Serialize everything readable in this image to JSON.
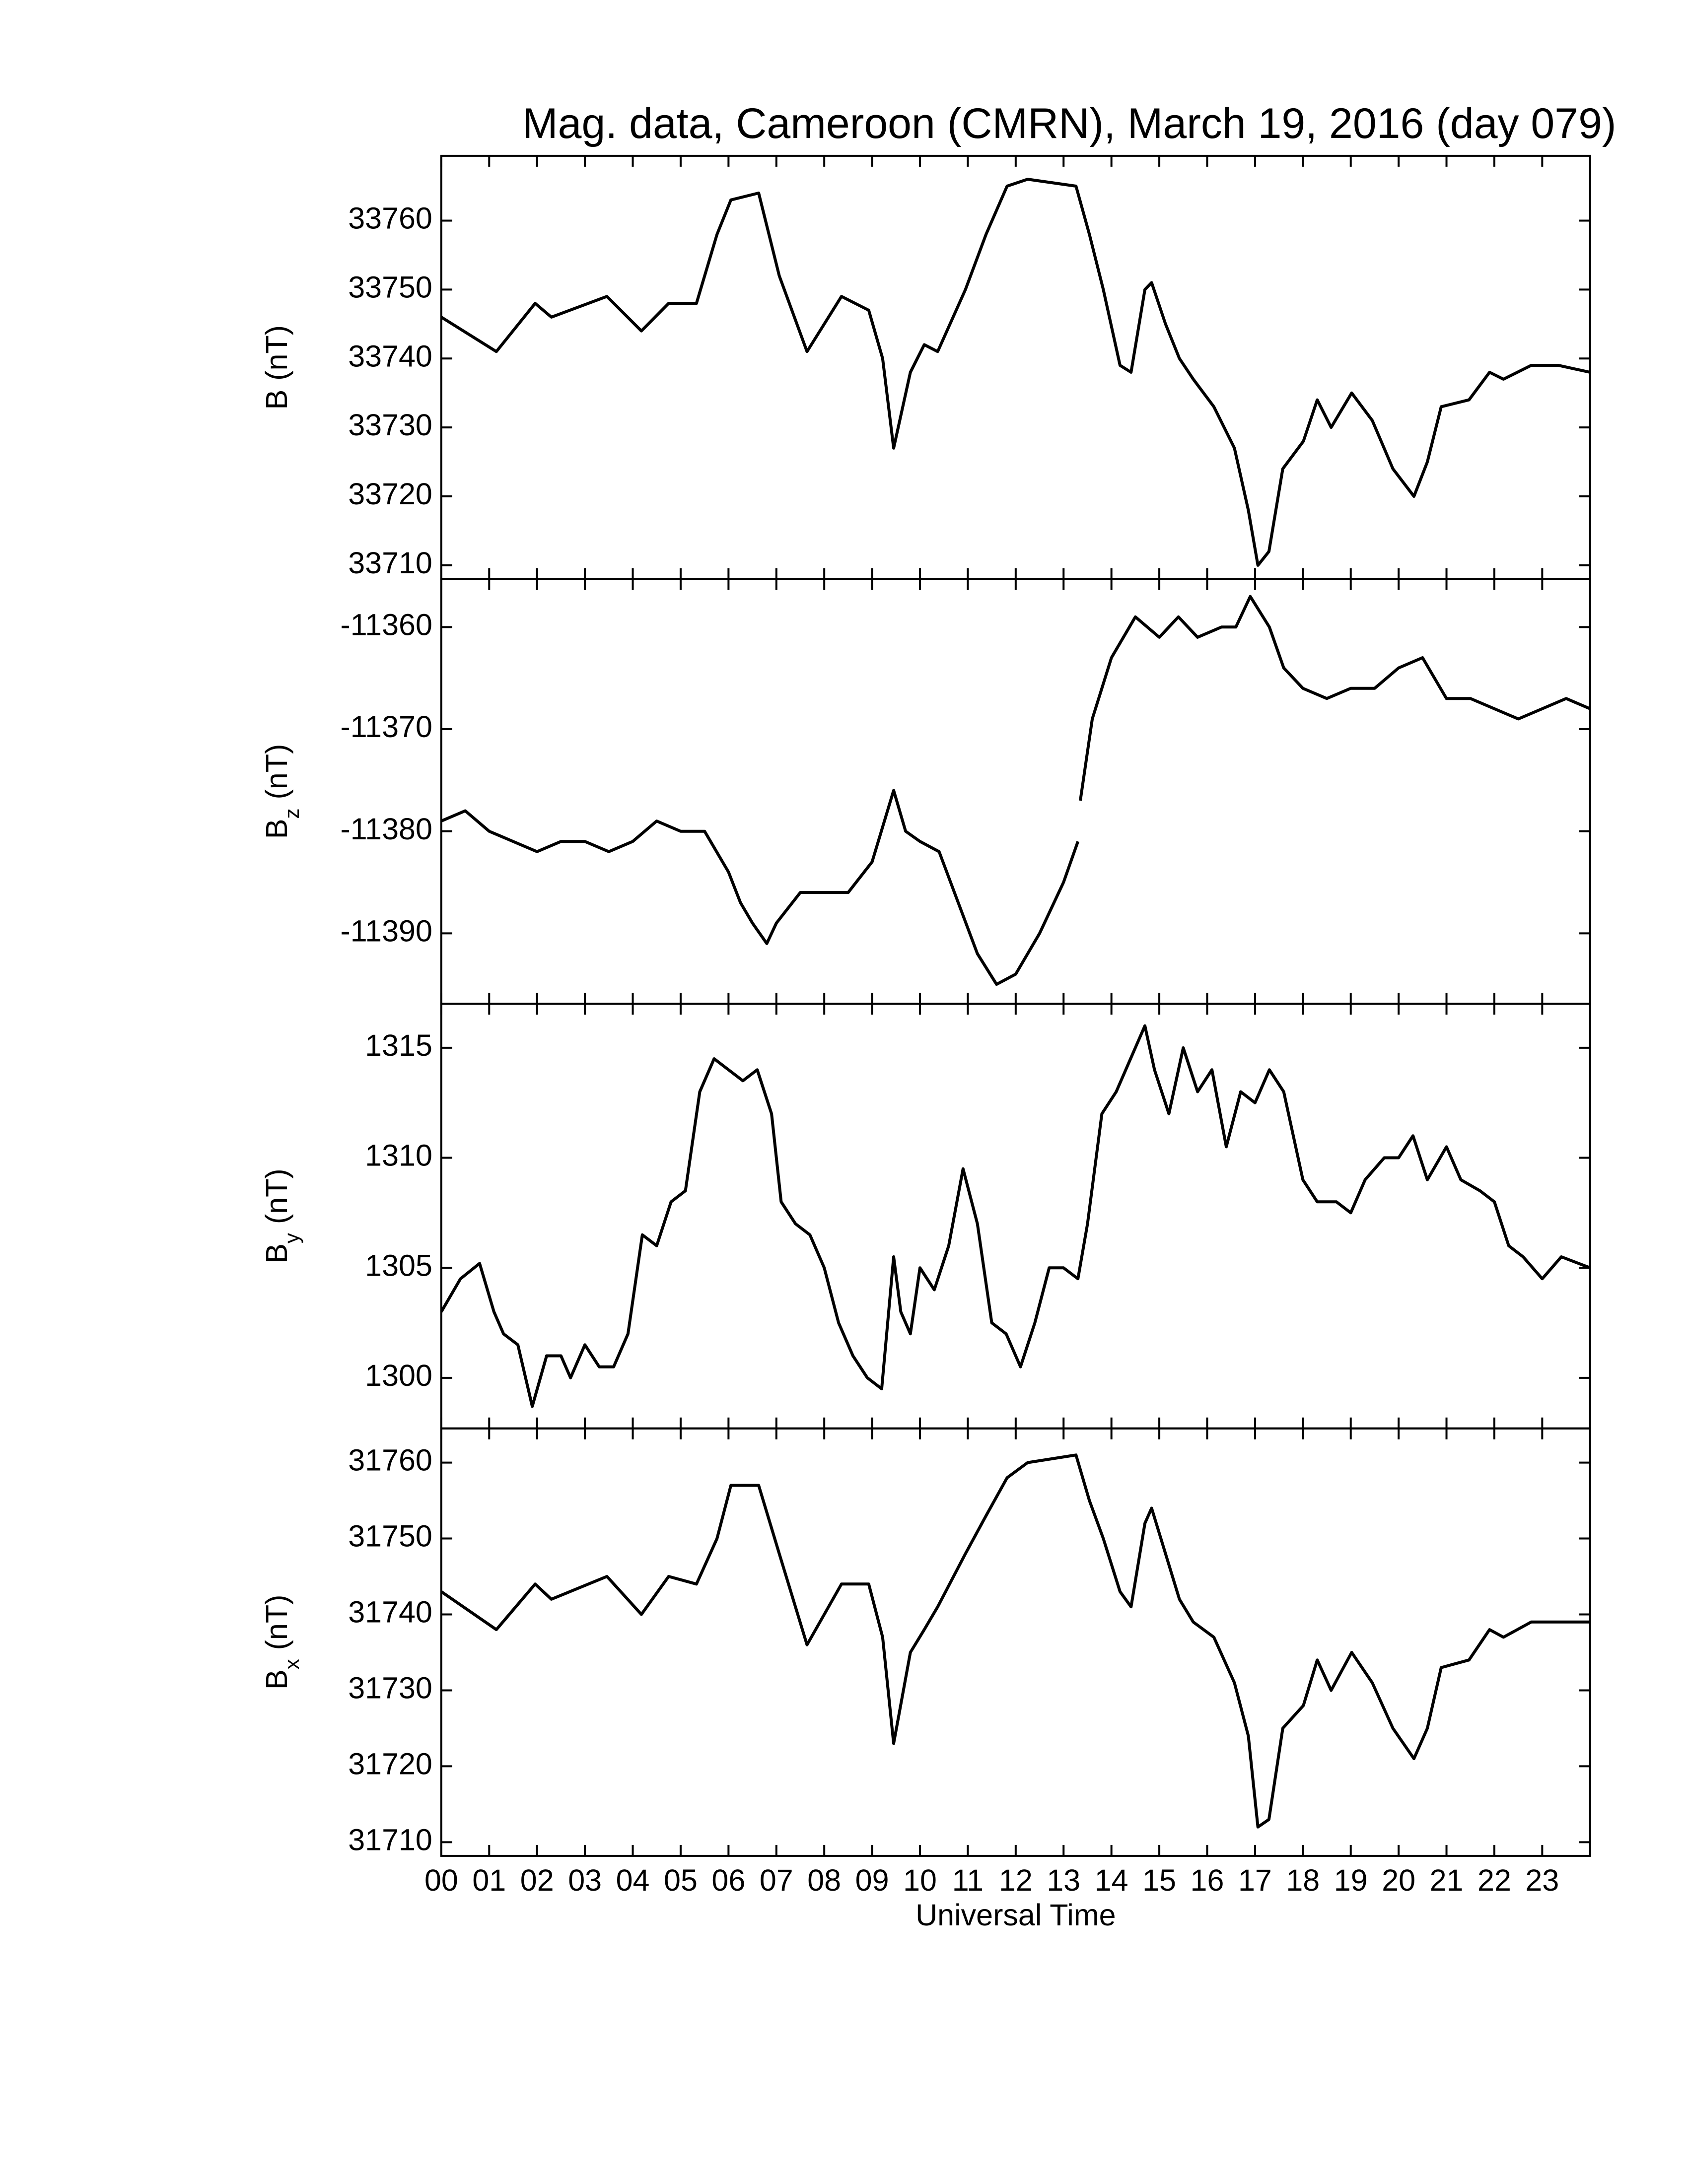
{
  "chart_data": [
    {
      "type": "line",
      "title": "Mag. data, Cameroon (CMRN), March 19, 2016 (day 079)",
      "ylabel": "B",
      "ylabel_unit": "(nT)",
      "color": "#000000",
      "xlim": [
        0,
        24
      ],
      "ylim": [
        33708,
        33769.4
      ],
      "yticks": [
        33710,
        33720,
        33730,
        33740,
        33750,
        33760
      ],
      "x": [
        0,
        1.15,
        1.96,
        2.3,
        3.46,
        4.18,
        4.75,
        5.33,
        5.76,
        6.05,
        6.63,
        7.06,
        7.64,
        8.36,
        8.93,
        9.22,
        9.45,
        9.8,
        10.09,
        10.37,
        10.95,
        11.38,
        11.82,
        12.25,
        13.26,
        13.54,
        13.83,
        14.18,
        14.41,
        14.7,
        14.84,
        15.13,
        15.42,
        15.71,
        16.14,
        16.57,
        16.86,
        17.06,
        17.29,
        17.58,
        18.01,
        18.3,
        18.59,
        19.02,
        19.45,
        19.88,
        20.32,
        20.6,
        20.89,
        21.47,
        21.9,
        22.19,
        22.77,
        23.34,
        24
      ],
      "values": [
        33746,
        33741,
        33748,
        33746,
        33749,
        33744,
        33748,
        33748,
        33758,
        33763,
        33764,
        33752,
        33741,
        33749,
        33747,
        33740,
        33727,
        33738,
        33742,
        33741,
        33750,
        33758,
        33765,
        33766,
        33765,
        33758,
        33750,
        33739,
        33738,
        33750,
        33751,
        33745,
        33740,
        33737,
        33733,
        33727,
        33718,
        33710,
        33712,
        33724,
        33728,
        33734,
        33730,
        33735,
        33731,
        33724,
        33720,
        33725,
        33733,
        33734,
        33738,
        33737,
        33739,
        33739,
        33738
      ]
    },
    {
      "type": "line",
      "ylabel": "B",
      "ylabel_sub": "z",
      "ylabel_unit": "(nT)",
      "color": "#000000",
      "xlim": [
        0,
        24
      ],
      "ylim": [
        -11396.9,
        -11355.3
      ],
      "yticks": [
        -11390,
        -11380,
        -11370,
        -11360
      ],
      "x": [
        0,
        0.5,
        1,
        1.5,
        2,
        2.5,
        3,
        3.5,
        4,
        4.5,
        5,
        5.5,
        6,
        6.25,
        6.5,
        6.8,
        7,
        7.5,
        8,
        8.5,
        9,
        9.45,
        9.7,
        10,
        10.4,
        10.8,
        11.2,
        11.6,
        12,
        12.5,
        13,
        13.3,
        13.32,
        13.35,
        13.6,
        14,
        14.5,
        15,
        15.4,
        15.8,
        16.3,
        16.6,
        16.9,
        17.3,
        17.6,
        18,
        18.5,
        19,
        19.5,
        20,
        20.5,
        21,
        21.5,
        22,
        22.5,
        23,
        23.5,
        24
      ],
      "values": [
        -11379,
        -11378,
        -11380,
        -11381,
        -11382,
        -11381,
        -11381,
        -11382,
        -11381,
        -11379,
        -11380,
        -11380,
        -11384,
        -11387,
        -11389,
        -11391,
        -11389,
        -11386,
        -11386,
        -11386,
        -11383,
        -11376,
        -11380,
        -11381,
        -11382,
        -11387,
        -11392,
        -11395,
        -11394,
        -11390,
        -11385,
        -11381,
        null,
        -11377,
        -11369,
        -11363,
        -11359,
        -11361,
        -11359,
        -11361,
        -11360,
        -11360,
        -11357,
        -11360,
        -11364,
        -11366,
        -11367,
        -11366,
        -11366,
        -11364,
        -11363,
        -11367,
        -11367,
        -11368,
        -11369,
        -11368,
        -11367,
        -11368
      ]
    },
    {
      "type": "line",
      "ylabel": "B",
      "ylabel_sub": "y",
      "ylabel_unit": "(nT)",
      "color": "#000000",
      "xlim": [
        0,
        24
      ],
      "ylim": [
        1297.7,
        1317.0
      ],
      "yticks": [
        1300,
        1305,
        1310,
        1315
      ],
      "x": [
        0,
        0.4,
        0.8,
        1.1,
        1.3,
        1.6,
        1.9,
        2.2,
        2.5,
        2.7,
        3,
        3.3,
        3.6,
        3.9,
        4.2,
        4.5,
        4.8,
        5.1,
        5.4,
        5.7,
        6,
        6.3,
        6.6,
        6.9,
        7.1,
        7.4,
        7.7,
        8,
        8.3,
        8.6,
        8.9,
        9.2,
        9.45,
        9.6,
        9.8,
        10,
        10.3,
        10.6,
        10.9,
        11.2,
        11.5,
        11.8,
        12.1,
        12.4,
        12.7,
        13,
        13.3,
        13.5,
        13.8,
        14.1,
        14.4,
        14.7,
        14.9,
        15.2,
        15.5,
        15.8,
        16.1,
        16.4,
        16.7,
        17,
        17.3,
        17.6,
        18,
        18.3,
        18.7,
        19,
        19.3,
        19.7,
        20,
        20.3,
        20.6,
        21,
        21.3,
        21.7,
        22,
        22.3,
        22.6,
        23,
        23.4,
        24
      ],
      "values": [
        1303,
        1304.5,
        1305.2,
        1303,
        1302,
        1301.5,
        1298.7,
        1301,
        1301,
        1300,
        1301.5,
        1300.5,
        1300.5,
        1302,
        1306.5,
        1306,
        1308,
        1308.5,
        1313,
        1314.5,
        1314,
        1313.5,
        1314,
        1312,
        1308,
        1307,
        1306.5,
        1305,
        1302.5,
        1301,
        1300,
        1299.5,
        1305.5,
        1303,
        1302,
        1305,
        1304,
        1306,
        1309.5,
        1307,
        1302.5,
        1302,
        1300.5,
        1302.5,
        1305,
        1305,
        1304.5,
        1307,
        1312,
        1313,
        1314.5,
        1316,
        1314,
        1312,
        1315,
        1313,
        1314,
        1310.5,
        1313,
        1312.5,
        1314,
        1313,
        1309,
        1308,
        1308,
        1307.5,
        1309,
        1310,
        1310,
        1311,
        1309,
        1310.5,
        1309,
        1308.5,
        1308,
        1306,
        1305.5,
        1304.5,
        1305.5,
        1305
      ]
    },
    {
      "type": "line",
      "ylabel": "B",
      "ylabel_sub": "x",
      "ylabel_unit": "(nT)",
      "color": "#000000",
      "xlabel": "Universal Time",
      "xlim": [
        0,
        24
      ],
      "ylim": [
        31708.2,
        31764.5
      ],
      "yticks": [
        31710,
        31720,
        31730,
        31740,
        31750,
        31760
      ],
      "xticks": [
        {
          "value": 0,
          "label": "00"
        },
        {
          "value": 1,
          "label": "01"
        },
        {
          "value": 2,
          "label": "02"
        },
        {
          "value": 3,
          "label": "03"
        },
        {
          "value": 4,
          "label": "04"
        },
        {
          "value": 5,
          "label": "05"
        },
        {
          "value": 6,
          "label": "06"
        },
        {
          "value": 7,
          "label": "07"
        },
        {
          "value": 8,
          "label": "08"
        },
        {
          "value": 9,
          "label": "09"
        },
        {
          "value": 10,
          "label": "10"
        },
        {
          "value": 11,
          "label": "11"
        },
        {
          "value": 12,
          "label": "12"
        },
        {
          "value": 13,
          "label": "13"
        },
        {
          "value": 14,
          "label": "14"
        },
        {
          "value": 15,
          "label": "15"
        },
        {
          "value": 16,
          "label": "16"
        },
        {
          "value": 17,
          "label": "17"
        },
        {
          "value": 18,
          "label": "18"
        },
        {
          "value": 19,
          "label": "19"
        },
        {
          "value": 20,
          "label": "20"
        },
        {
          "value": 21,
          "label": "21"
        },
        {
          "value": 22,
          "label": "22"
        },
        {
          "value": 23,
          "label": "23"
        }
      ],
      "x": [
        0,
        1.15,
        1.96,
        2.3,
        3.46,
        4.18,
        4.75,
        5.33,
        5.76,
        6.05,
        6.63,
        7.06,
        7.64,
        8.36,
        8.93,
        9.22,
        9.45,
        9.8,
        10.09,
        10.37,
        10.95,
        11.38,
        11.82,
        12.25,
        13.26,
        13.54,
        13.83,
        14.18,
        14.41,
        14.7,
        14.84,
        15.13,
        15.42,
        15.71,
        16.14,
        16.57,
        16.86,
        17.06,
        17.29,
        17.58,
        18.01,
        18.3,
        18.59,
        19.02,
        19.45,
        19.88,
        20.32,
        20.6,
        20.89,
        21.47,
        21.9,
        22.19,
        22.77,
        23.34,
        24
      ],
      "values": [
        31743,
        31738,
        31744,
        31742,
        31745,
        31740,
        31745,
        31744,
        31750,
        31757,
        31757,
        31748,
        31736,
        31744,
        31744,
        31737,
        31723,
        31735,
        31738,
        31741,
        31748,
        31753,
        31758,
        31760,
        31761,
        31755,
        31750,
        31743,
        31741,
        31752,
        31754,
        31748,
        31742,
        31739,
        31737,
        31731,
        31724,
        31712,
        31713,
        31725,
        31728,
        31734,
        31730,
        31735,
        31731,
        31725,
        31721,
        31725,
        31733,
        31734,
        31738,
        31737,
        31739,
        31739,
        31739
      ]
    }
  ]
}
